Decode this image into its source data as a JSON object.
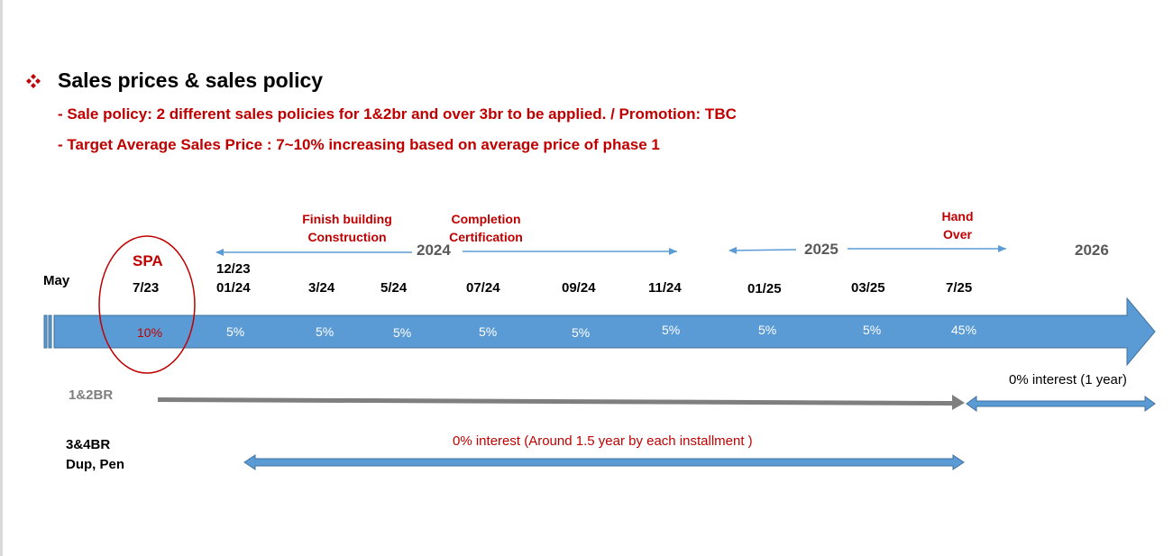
{
  "header": {
    "title": "Sales prices & sales policy",
    "bullet_icon": "diamond-bullet-icon",
    "lines": [
      "- Sale policy: 2 different sales policies for 1&2br and over 3br to be applied. / Promotion: TBC",
      "- Target Average Sales Price :  7~10% increasing based on average price of phase 1"
    ]
  },
  "timeline": {
    "start_label": "May",
    "spa_label": "SPA",
    "events": {
      "finish_construction": [
        "Finish building",
        "Construction"
      ],
      "completion": [
        "Completion",
        "Certification"
      ],
      "handover": [
        "Hand",
        "Over"
      ]
    },
    "years": [
      "2024",
      "2025",
      "2026"
    ],
    "extra_date": "12/23",
    "dates": [
      "7/23",
      "01/24",
      "3/24",
      "5/24",
      "07/24",
      "09/24",
      "11/24",
      "01/25",
      "03/25",
      "7/25"
    ],
    "percents": [
      "10%",
      "5%",
      "5%",
      "5%",
      "5%",
      "5%",
      "5%",
      "5%",
      "5%",
      "45%"
    ]
  },
  "policies": {
    "group_1_2br": {
      "label": "1&2BR",
      "note": "0% interest (1 year)"
    },
    "group_3_4br": {
      "label_lines": [
        "3&4BR",
        "Dup, Pen"
      ],
      "note": "0% interest (Around 1.5 year by each installment )"
    }
  },
  "colors": {
    "accent_red": "#c00000",
    "bar_blue": "#5b9bd5",
    "bar_border": "#41719c",
    "arrow_gray": "#7f7f7f",
    "year_gray": "#595959"
  }
}
